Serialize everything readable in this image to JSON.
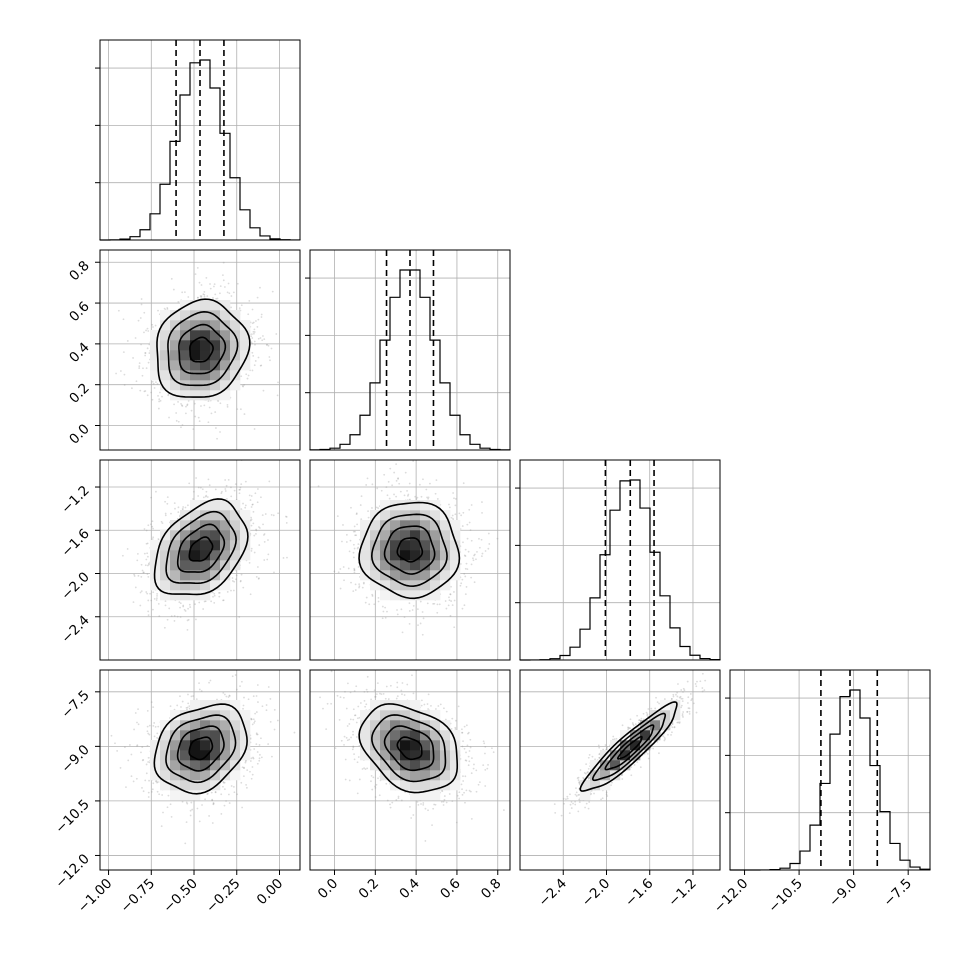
{
  "chart_data": {
    "type": "corner",
    "parameters": [
      {
        "range": [
          -1.05,
          0.12
        ],
        "center": -0.46,
        "std": 0.135,
        "quantiles": [
          -0.605,
          -0.465,
          -0.325
        ],
        "ticks": [
          -1.0,
          -0.75,
          -0.5,
          -0.25,
          0.0
        ],
        "tick_labels": [
          "−1.00",
          "−0.75",
          "−0.50",
          "−0.25",
          "0.00"
        ]
      },
      {
        "range": [
          -0.12,
          0.86
        ],
        "center": 0.37,
        "std": 0.12,
        "quantiles": [
          0.255,
          0.37,
          0.485
        ],
        "ticks": [
          0.0,
          0.2,
          0.4,
          0.6,
          0.8
        ],
        "tick_labels": [
          "0.0",
          "0.2",
          "0.4",
          "0.6",
          "0.8"
        ]
      },
      {
        "range": [
          -2.8,
          -0.95
        ],
        "center": -1.78,
        "std": 0.22,
        "quantiles": [
          -2.01,
          -1.78,
          -1.56
        ],
        "ticks": [
          -2.4,
          -2.0,
          -1.6,
          -1.2
        ],
        "tick_labels": [
          "−2.4",
          "−2.0",
          "−1.6",
          "−1.2"
        ]
      },
      {
        "range": [
          -12.4,
          -6.9
        ],
        "center": -9.05,
        "std": 0.6,
        "quantiles": [
          -9.9,
          -9.1,
          -8.35
        ],
        "ticks": [
          -12.0,
          -10.5,
          -9.0,
          -7.5
        ],
        "tick_labels": [
          "−12.0",
          "−10.5",
          "−9.0",
          "−7.5"
        ]
      }
    ],
    "correlations": [
      [
        1.0,
        0.1,
        0.35,
        0.25
      ],
      [
        0.1,
        1.0,
        0.0,
        -0.3
      ],
      [
        0.35,
        0.0,
        1.0,
        0.92
      ],
      [
        0.25,
        -0.3,
        0.92,
        1.0
      ]
    ],
    "hist_bins": 20,
    "density_bins": 20,
    "contour_levels": [
      0.5,
      1.0,
      1.5,
      2.0
    ],
    "colors": {
      "points": "#9a9a9a",
      "density_dark": "#000000",
      "grid": "#b0b0b0"
    },
    "grid": true,
    "title": "",
    "xlabel": "",
    "ylabel": ""
  }
}
